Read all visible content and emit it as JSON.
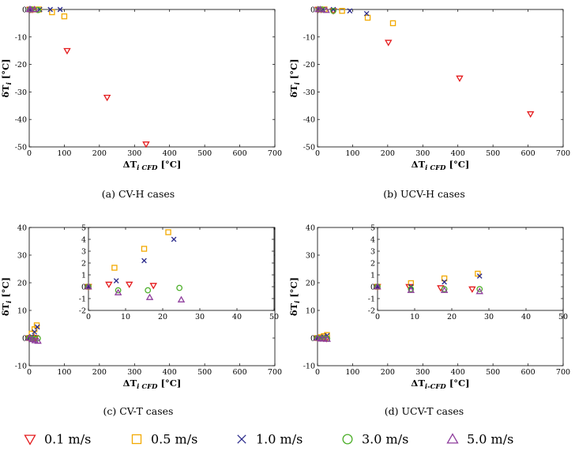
{
  "colors": {
    "0.1": "#e41a1c",
    "0.5": "#f2a900",
    "1.0": "#2c2c8c",
    "3.0": "#4daf2a",
    "5.0": "#8e3d9c"
  },
  "legend": [
    {
      "label": "0.1 m/s",
      "marker": "triangle-down",
      "series": "0.1"
    },
    {
      "label": "0.5 m/s",
      "marker": "square",
      "series": "0.5"
    },
    {
      "label": "1.0 m/s",
      "marker": "x",
      "series": "1.0"
    },
    {
      "label": "3.0 m/s",
      "marker": "circle",
      "series": "3.0"
    },
    {
      "label": "5.0 m/s",
      "marker": "triangle-up",
      "series": "5.0"
    }
  ],
  "chart_data": [
    {
      "id": "a",
      "type": "scatter",
      "caption": "(a) CV-H cases",
      "xlabel": "ΔT",
      "xlabel_sub": "i CFD",
      "xlabel_unit": " [°C]",
      "ylabel": "δT",
      "ylabel_sub": "i",
      "ylabel_unit": " [°C]",
      "xlim": [
        0,
        700
      ],
      "ylim": [
        -50,
        0
      ],
      "xticks": [
        0,
        100,
        200,
        300,
        400,
        500,
        600,
        700
      ],
      "yticks": [
        -50,
        -40,
        -30,
        -20,
        -10,
        0
      ],
      "series": [
        {
          "name": "0.1 m/s",
          "key": "0.1",
          "marker": "triangle-down",
          "points": [
            [
              2,
              0
            ],
            [
              5,
              0
            ],
            [
              10,
              0
            ],
            [
              108,
              -15
            ],
            [
              222,
              -32
            ],
            [
              333,
              -49
            ]
          ]
        },
        {
          "name": "0.5 m/s",
          "key": "0.5",
          "marker": "square",
          "points": [
            [
              4,
              0
            ],
            [
              12,
              0
            ],
            [
              28,
              0
            ],
            [
              65,
              -1
            ],
            [
              100,
              -2.5
            ]
          ]
        },
        {
          "name": "1.0 m/s",
          "key": "1.0",
          "marker": "x",
          "points": [
            [
              3,
              0
            ],
            [
              8,
              0
            ],
            [
              30,
              0
            ],
            [
              60,
              0
            ],
            [
              88,
              0
            ]
          ]
        },
        {
          "name": "3.0 m/s",
          "key": "3.0",
          "marker": "circle",
          "points": [
            [
              2,
              0
            ],
            [
              6,
              0
            ],
            [
              25,
              -0.2
            ]
          ]
        },
        {
          "name": "5.0 m/s",
          "key": "5.0",
          "marker": "triangle-up",
          "points": [
            [
              1,
              0
            ],
            [
              4,
              0
            ],
            [
              15,
              0
            ]
          ]
        }
      ]
    },
    {
      "id": "b",
      "type": "scatter",
      "caption": "(b) UCV-H cases",
      "xlabel": "ΔT",
      "xlabel_sub": "i CFD",
      "xlabel_unit": " [°C]",
      "ylabel": "δT",
      "ylabel_sub": "i",
      "ylabel_unit": " [°C]",
      "xlim": [
        0,
        700
      ],
      "ylim": [
        -50,
        0
      ],
      "xticks": [
        0,
        100,
        200,
        300,
        400,
        500,
        600,
        700
      ],
      "yticks": [
        -50,
        -40,
        -30,
        -20,
        -10,
        0
      ],
      "series": [
        {
          "name": "0.1 m/s",
          "key": "0.1",
          "marker": "triangle-down",
          "points": [
            [
              2,
              0
            ],
            [
              10,
              0
            ],
            [
              45,
              -0.5
            ],
            [
              202,
              -12
            ],
            [
              405,
              -25
            ],
            [
              607,
              -38
            ]
          ]
        },
        {
          "name": "0.5 m/s",
          "key": "0.5",
          "marker": "square",
          "points": [
            [
              5,
              0
            ],
            [
              20,
              0
            ],
            [
              70,
              -0.5
            ],
            [
              143,
              -3
            ],
            [
              215,
              -5
            ]
          ]
        },
        {
          "name": "1.0 m/s",
          "key": "1.0",
          "marker": "x",
          "points": [
            [
              4,
              0
            ],
            [
              15,
              0
            ],
            [
              45,
              0
            ],
            [
              92,
              -0.5
            ],
            [
              140,
              -1.5
            ]
          ]
        },
        {
          "name": "3.0 m/s",
          "key": "3.0",
          "marker": "circle",
          "points": [
            [
              3,
              0
            ],
            [
              12,
              0
            ],
            [
              45,
              -0.5
            ]
          ]
        },
        {
          "name": "5.0 m/s",
          "key": "5.0",
          "marker": "triangle-up",
          "points": [
            [
              2,
              0
            ],
            [
              8,
              0
            ],
            [
              25,
              -0.3
            ]
          ]
        }
      ]
    },
    {
      "id": "c",
      "type": "scatter",
      "caption": "(c) CV-T cases",
      "xlabel": "ΔT",
      "xlabel_sub": "i CFD",
      "xlabel_unit": " [°C]",
      "ylabel": "δT",
      "ylabel_sub": "i",
      "ylabel_unit": " [°C]",
      "xlim": [
        0,
        700
      ],
      "ylim": [
        -10,
        40
      ],
      "xticks": [
        0,
        100,
        200,
        300,
        400,
        500,
        600,
        700
      ],
      "yticks": [
        -10,
        0,
        10,
        20,
        30,
        40
      ],
      "series": [
        {
          "name": "0.1 m/s",
          "key": "0.1",
          "marker": "triangle-down",
          "points": [
            [
              0,
              0
            ],
            [
              5.5,
              0.2
            ],
            [
              11,
              0.2
            ],
            [
              17.5,
              0.1
            ]
          ]
        },
        {
          "name": "0.5 m/s",
          "key": "0.5",
          "marker": "square",
          "points": [
            [
              0,
              0
            ],
            [
              7,
              1.6
            ],
            [
              15,
              3.2
            ],
            [
              21.5,
              4.6
            ]
          ]
        },
        {
          "name": "1.0 m/s",
          "key": "1.0",
          "marker": "x",
          "points": [
            [
              0,
              0
            ],
            [
              7.5,
              0.5
            ],
            [
              15,
              2.2
            ],
            [
              23,
              4
            ]
          ]
        },
        {
          "name": "3.0 m/s",
          "key": "3.0",
          "marker": "circle",
          "points": [
            [
              0,
              0
            ],
            [
              8,
              -0.3
            ],
            [
              16,
              -0.3
            ],
            [
              24.5,
              -0.1
            ]
          ]
        },
        {
          "name": "5.0 m/s",
          "key": "5.0",
          "marker": "triangle-up",
          "points": [
            [
              0,
              0
            ],
            [
              8,
              -0.5
            ],
            [
              16.5,
              -0.9
            ],
            [
              25,
              -1.1
            ]
          ]
        }
      ],
      "inset": {
        "xlim": [
          0,
          50
        ],
        "ylim": [
          -2,
          5
        ],
        "xticks": [
          0,
          10,
          20,
          30,
          40,
          50
        ],
        "yticks": [
          -2,
          -1,
          0,
          1,
          2,
          3,
          4,
          5
        ]
      }
    },
    {
      "id": "d",
      "type": "scatter",
      "caption": "(d) UCV-T cases",
      "xlabel": "ΔT",
      "xlabel_sub": "i-CFD",
      "xlabel_unit": " [°C]",
      "ylabel": "δT",
      "ylabel_sub": "i",
      "ylabel_unit": " [°C]",
      "xlim": [
        0,
        700
      ],
      "ylim": [
        -10,
        40
      ],
      "xticks": [
        0,
        100,
        200,
        300,
        400,
        500,
        600,
        700
      ],
      "yticks": [
        -10,
        0,
        10,
        20,
        30,
        40
      ],
      "series": [
        {
          "name": "0.1 m/s",
          "key": "0.1",
          "marker": "triangle-down",
          "points": [
            [
              0,
              0
            ],
            [
              8.5,
              0
            ],
            [
              17,
              -0.1
            ],
            [
              25.5,
              -0.2
            ]
          ]
        },
        {
          "name": "0.5 m/s",
          "key": "0.5",
          "marker": "square",
          "points": [
            [
              0,
              0
            ],
            [
              9,
              0.3
            ],
            [
              18,
              0.7
            ],
            [
              27,
              1.1
            ]
          ]
        },
        {
          "name": "1.0 m/s",
          "key": "1.0",
          "marker": "x",
          "points": [
            [
              0,
              0
            ],
            [
              9,
              0
            ],
            [
              18,
              0.4
            ],
            [
              27.5,
              0.9
            ]
          ]
        },
        {
          "name": "3.0 m/s",
          "key": "3.0",
          "marker": "circle",
          "points": [
            [
              0,
              0
            ],
            [
              9,
              -0.2
            ],
            [
              18,
              -0.2
            ],
            [
              27.5,
              -0.2
            ]
          ]
        },
        {
          "name": "5.0 m/s",
          "key": "5.0",
          "marker": "triangle-up",
          "points": [
            [
              0,
              0
            ],
            [
              9,
              -0.3
            ],
            [
              18,
              -0.3
            ],
            [
              27.5,
              -0.4
            ]
          ]
        }
      ],
      "inset": {
        "xlim": [
          0,
          50
        ],
        "ylim": [
          -2,
          5
        ],
        "xticks": [
          0,
          10,
          20,
          30,
          40,
          50
        ],
        "yticks": [
          -2,
          -1,
          0,
          1,
          2,
          3,
          4,
          5
        ]
      }
    }
  ]
}
